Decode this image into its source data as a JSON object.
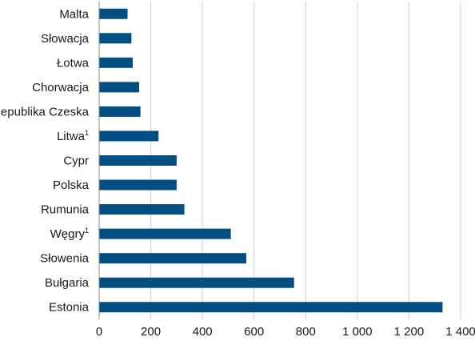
{
  "chart_data": {
    "type": "bar",
    "orientation": "horizontal",
    "categories": [
      "Malta",
      "Słowacja",
      "Łotwa",
      "Chorwacja",
      "Republika Czeska",
      "Litwa",
      "Cypr",
      "Polska",
      "Rumunia",
      "Węgry",
      "Słowenia",
      "Bułgaria",
      "Estonia"
    ],
    "category_footnotes": [
      "",
      "",
      "",
      "",
      "",
      "1",
      "",
      "",
      "",
      "1",
      "",
      "",
      ""
    ],
    "values": [
      110,
      125,
      130,
      155,
      160,
      230,
      300,
      300,
      330,
      510,
      570,
      755,
      1330
    ],
    "xlim": [
      0,
      1400
    ],
    "xticks": [
      0,
      200,
      400,
      600,
      800,
      1000,
      1200,
      1400
    ],
    "xtick_labels": [
      "0",
      "200",
      "400",
      "600",
      "800",
      "1 000",
      "1 200",
      "1 400"
    ],
    "grid": "vertical",
    "bar_color": "#034f84",
    "title": "",
    "xlabel": "",
    "ylabel": ""
  }
}
